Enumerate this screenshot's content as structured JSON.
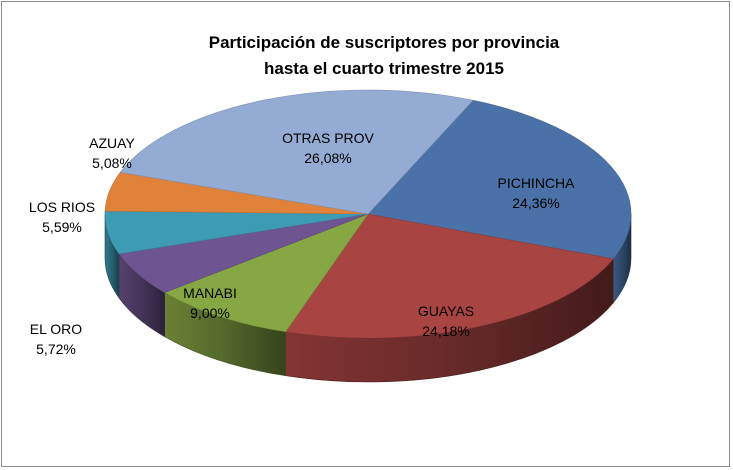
{
  "chart_data": {
    "type": "pie",
    "title_lines": [
      "Participación de suscriptores por provincia",
      "hasta el cuarto trimestre 2015"
    ],
    "slices": [
      {
        "name": "PICHINCHA",
        "value_label": "24,36%",
        "value": 24.36,
        "color": "#4a72a8"
      },
      {
        "name": "GUAYAS",
        "value_label": "24,18%",
        "value": 24.18,
        "color": "#a84442"
      },
      {
        "name": "MANABI",
        "value_label": "9,00%",
        "value": 9.0,
        "color": "#86a744"
      },
      {
        "name": "EL ORO",
        "value_label": "5,72%",
        "value": 5.72,
        "color": "#6e5490"
      },
      {
        "name": "LOS RIOS",
        "value_label": "5,59%",
        "value": 5.59,
        "color": "#3e9bb4"
      },
      {
        "name": "AZUAY",
        "value_label": "5,08%",
        "value": 5.08,
        "color": "#e0823a"
      },
      {
        "name": "OTRAS PROV",
        "value_label": "26,08%",
        "value": 26.08,
        "color": "#94abd3"
      }
    ],
    "style": "3d-pie",
    "legend": "none"
  }
}
